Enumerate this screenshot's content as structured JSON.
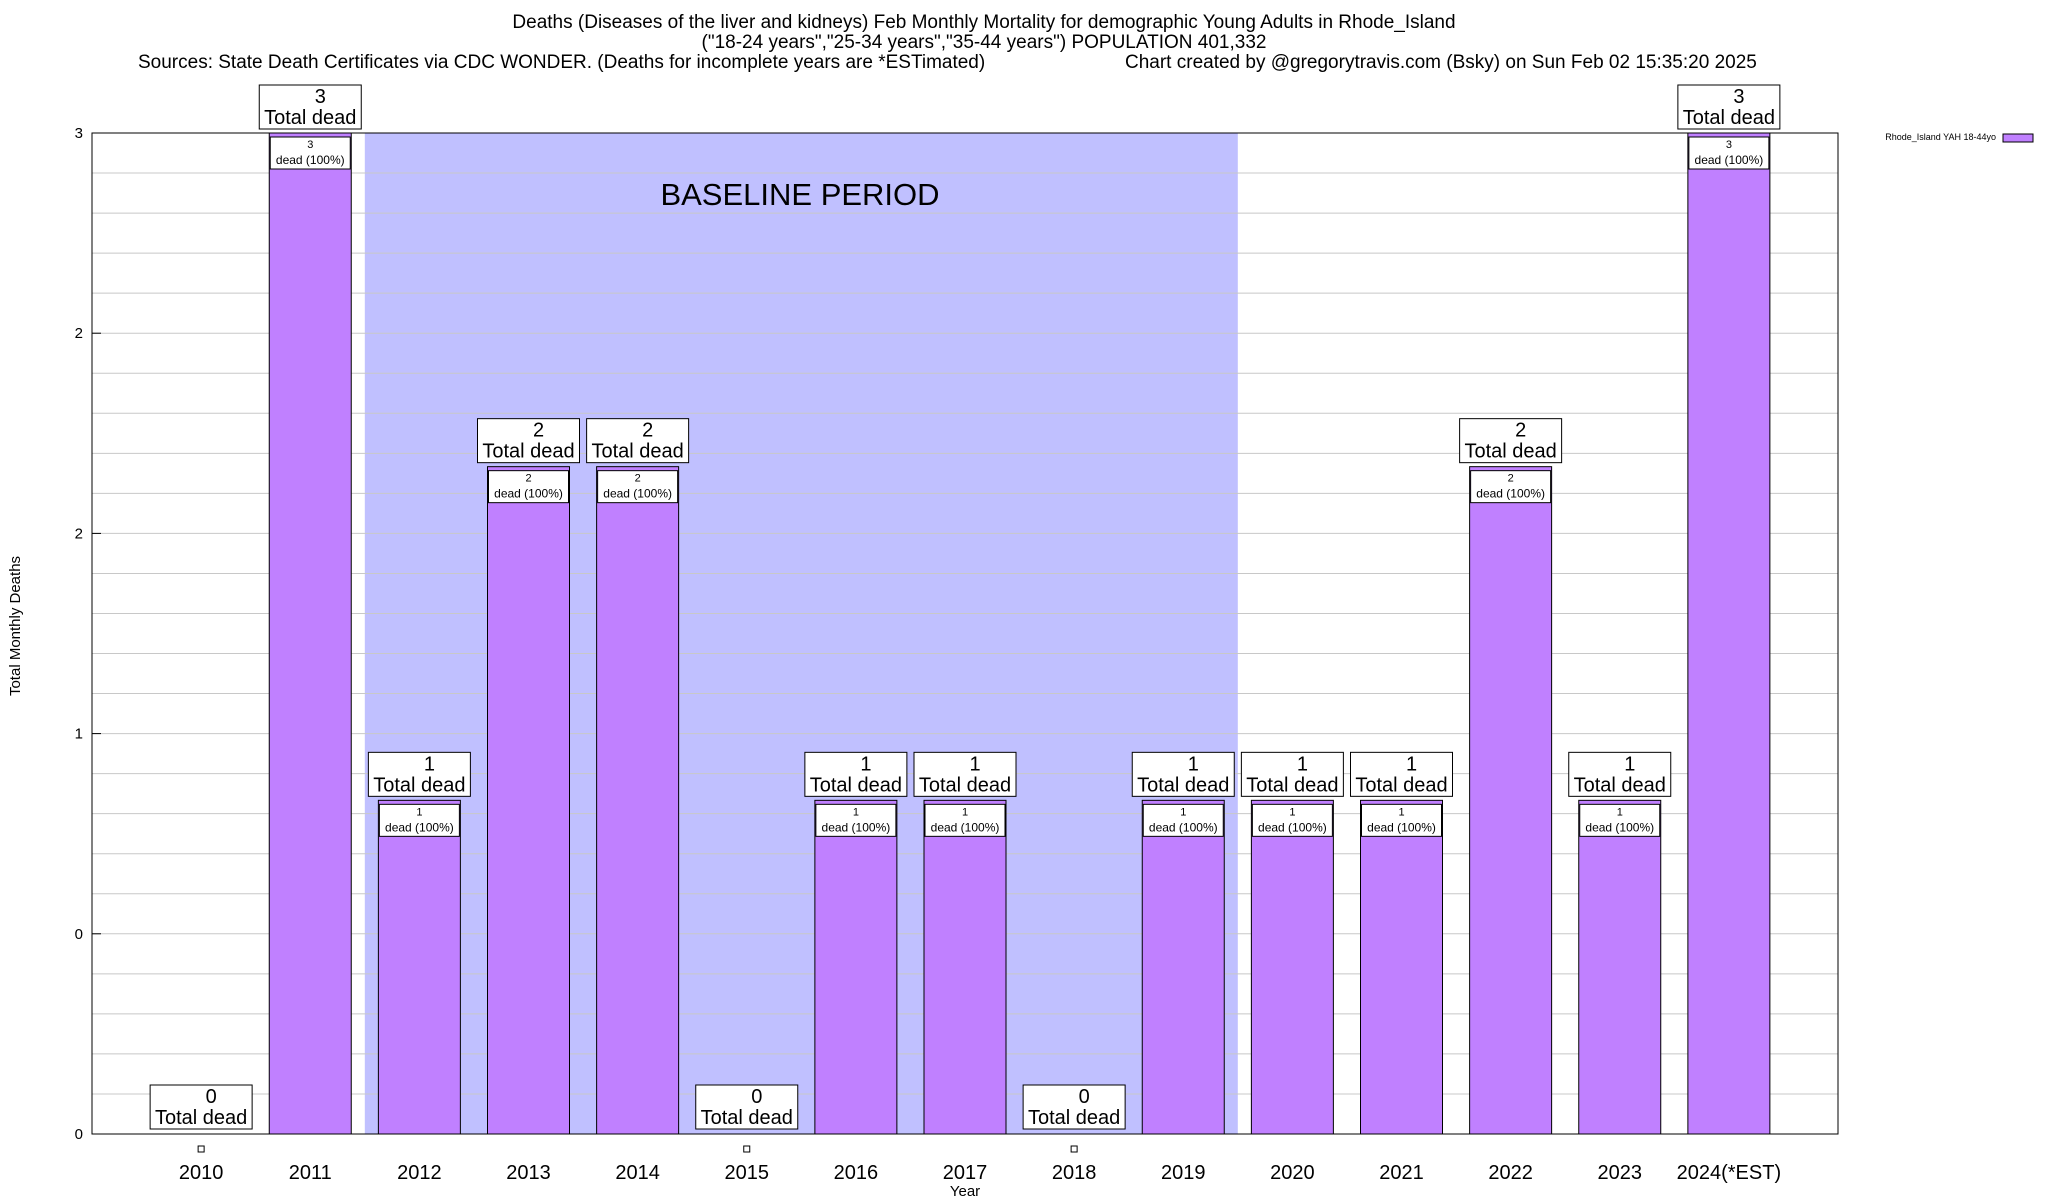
{
  "title": {
    "line1": "Deaths (Diseases of the liver and kidneys) Feb Monthly Mortality for demographic Young Adults in Rhode_Island",
    "line2": "(\"18-24 years\",\"25-34 years\",\"35-44 years\") POPULATION 401,332",
    "sources": "Sources: State Death Certificates via CDC WONDER. (Deaths for incomplete years are *ESTimated)",
    "credit": "Chart created by @gregorytravis.com (Bsky) on Sun Feb 02 15:35:20 2025"
  },
  "colors": {
    "bar": "#c080ff",
    "baseline": "#c0c0ff",
    "grid": "#c8c8c8"
  },
  "chart_data": {
    "type": "bar",
    "xlabel": "Year",
    "ylabel": "Total Monthly Deaths",
    "ylim": [
      0,
      3
    ],
    "ytick_labels": [
      "0",
      "0",
      "1",
      "2",
      "2",
      "3"
    ],
    "grid": true,
    "legend": {
      "position": "top-right",
      "label": "Rhode_Island YAH 18-44yo"
    },
    "annotation": {
      "text": "BASELINE PERIOD",
      "x_start": "2012",
      "x_end": "2019"
    },
    "categories": [
      "2010",
      "2011",
      "2012",
      "2013",
      "2014",
      "2015",
      "2016",
      "2017",
      "2018",
      "2019",
      "2020",
      "2021",
      "2022",
      "2023",
      "2024(*EST)"
    ],
    "series": [
      {
        "name": "Rhode_Island YAH 18-44yo",
        "values": [
          0,
          3,
          1,
          2,
          2,
          0,
          1,
          1,
          0,
          1,
          1,
          1,
          2,
          1,
          3
        ]
      }
    ],
    "total_label": "Total dead",
    "bar_label_suffix": "dead (100%)"
  }
}
